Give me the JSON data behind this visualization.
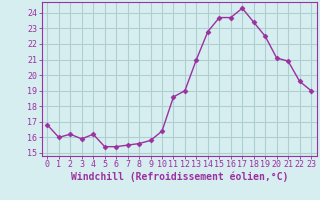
{
  "x": [
    0,
    1,
    2,
    3,
    4,
    5,
    6,
    7,
    8,
    9,
    10,
    11,
    12,
    13,
    14,
    15,
    16,
    17,
    18,
    19,
    20,
    21,
    22,
    23
  ],
  "y": [
    16.8,
    16.0,
    16.2,
    15.9,
    16.2,
    15.4,
    15.4,
    15.5,
    15.6,
    15.8,
    16.4,
    18.6,
    19.0,
    21.0,
    22.8,
    23.7,
    23.7,
    24.3,
    23.4,
    22.5,
    21.1,
    20.9,
    19.6,
    19.0
  ],
  "line_color": "#9B30A0",
  "marker": "D",
  "marker_size": 2.5,
  "bg_color": "#d6eef0",
  "grid_color": "#b0cdd0",
  "xlabel": "Windchill (Refroidissement éolien,°C)",
  "ylim": [
    14.8,
    24.7
  ],
  "xlim": [
    -0.5,
    23.5
  ],
  "yticks": [
    15,
    16,
    17,
    18,
    19,
    20,
    21,
    22,
    23,
    24
  ],
  "xticks": [
    0,
    1,
    2,
    3,
    4,
    5,
    6,
    7,
    8,
    9,
    10,
    11,
    12,
    13,
    14,
    15,
    16,
    17,
    18,
    19,
    20,
    21,
    22,
    23
  ],
  "tick_fontsize": 6.0,
  "label_fontsize": 7.0,
  "line_width": 1.0
}
